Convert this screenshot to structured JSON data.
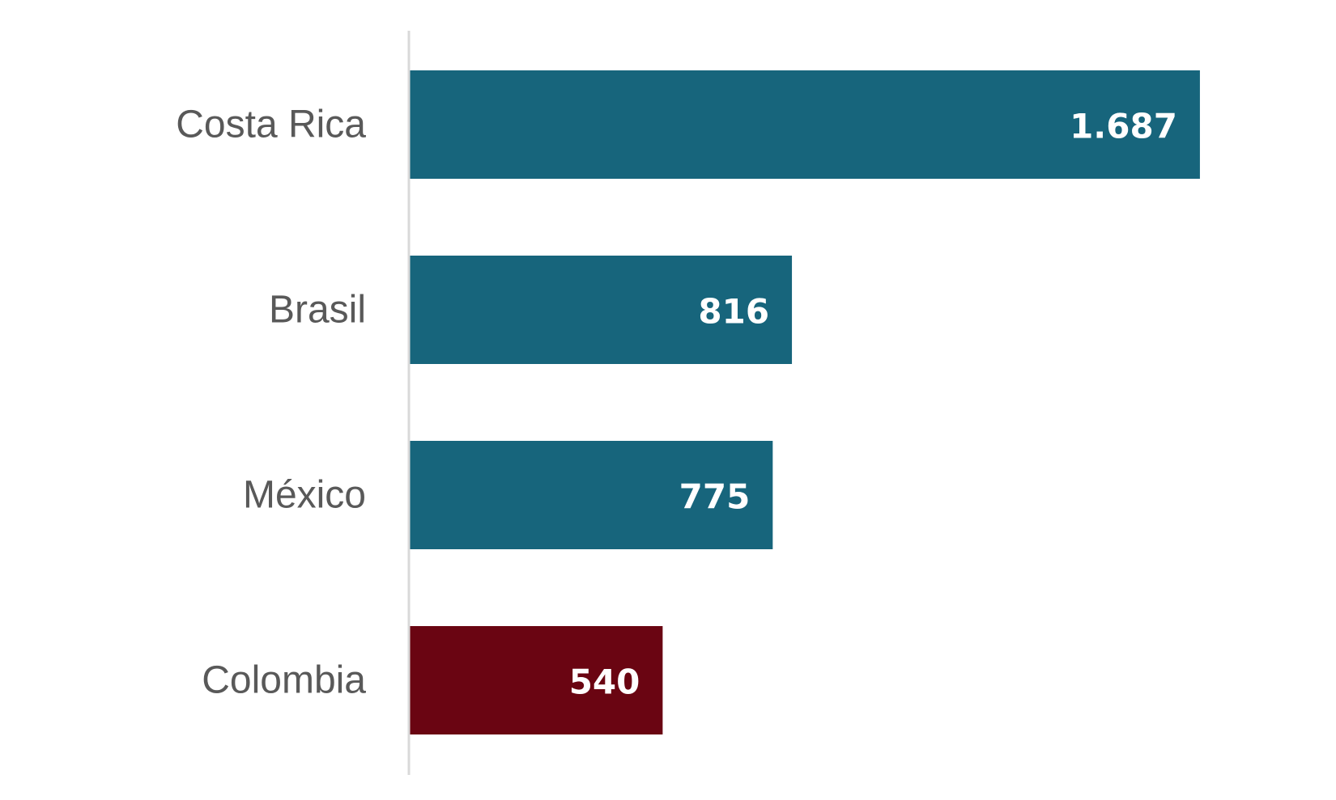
{
  "chart_data": {
    "type": "bar",
    "orientation": "horizontal",
    "categories": [
      "Costa Rica",
      "Brasil",
      "México",
      "Colombia"
    ],
    "values": [
      1687,
      816,
      775,
      540
    ],
    "value_labels": [
      "1.687",
      "816",
      "775",
      "540"
    ],
    "colors": [
      "#17657c",
      "#17657c",
      "#17657c",
      "#6a0512"
    ],
    "xlim": [
      0,
      1800
    ],
    "grid": false,
    "legend": "none",
    "title": "",
    "xlabel": "",
    "ylabel": ""
  }
}
